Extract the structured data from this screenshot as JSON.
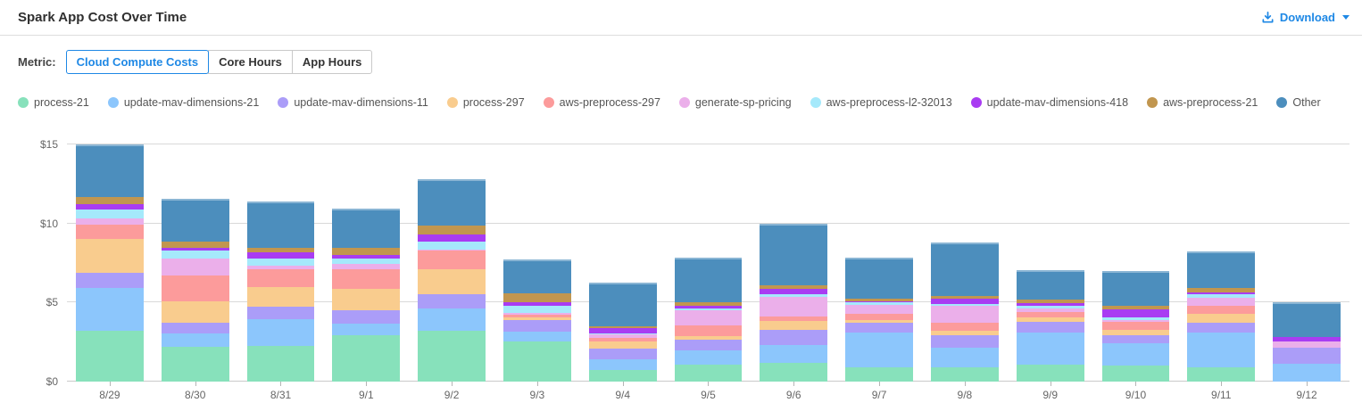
{
  "header": {
    "title": "Spark App Cost Over Time",
    "download": {
      "label": "Download",
      "accent_color": "#1E88E5"
    }
  },
  "metric_selector": {
    "label": "Metric:",
    "options": [
      {
        "label": "Cloud Compute Costs",
        "selected": true
      },
      {
        "label": "Core Hours",
        "selected": false
      },
      {
        "label": "App Hours",
        "selected": false
      }
    ]
  },
  "chart_data": {
    "type": "bar",
    "stacked": true,
    "title": "Spark App Cost Over Time",
    "xlabel": "",
    "ylabel": "",
    "ylim": [
      0,
      15
    ],
    "yticks": [
      {
        "label": "$0",
        "value": 0
      },
      {
        "label": "$5",
        "value": 5
      },
      {
        "label": "$10",
        "value": 10
      },
      {
        "label": "$15",
        "value": 15
      }
    ],
    "grid": true,
    "legend_position": "top",
    "categories": [
      "8/29",
      "8/30",
      "8/31",
      "9/1",
      "9/2",
      "9/3",
      "9/4",
      "9/5",
      "9/6",
      "9/7",
      "9/8",
      "9/9",
      "9/10",
      "9/11",
      "9/12"
    ],
    "series": [
      {
        "name": "process-21",
        "color": "#87E1BB",
        "values": [
          3.2,
          2.2,
          2.27,
          2.93,
          3.22,
          2.52,
          0.76,
          1.1,
          1.17,
          0.9,
          0.92,
          1.1,
          1.04,
          0.92,
          0.0
        ]
      },
      {
        "name": "update-mav-dimensions-21",
        "color": "#8CC6FC",
        "values": [
          2.7,
          0.85,
          1.66,
          0.76,
          1.42,
          0.62,
          0.66,
          0.87,
          1.13,
          2.23,
          1.21,
          2.0,
          1.36,
          2.16,
          1.12
        ]
      },
      {
        "name": "update-mav-dimensions-11",
        "color": "#AB9DF8",
        "values": [
          1.0,
          0.7,
          0.8,
          0.8,
          0.91,
          0.76,
          0.66,
          0.69,
          1.0,
          0.6,
          0.81,
          0.66,
          0.56,
          0.62,
          1.0
        ]
      },
      {
        "name": "process-297",
        "color": "#F9CC8E",
        "values": [
          2.15,
          1.35,
          1.23,
          1.39,
          1.55,
          0.17,
          0.44,
          0.24,
          0.51,
          0.17,
          0.28,
          0.29,
          0.29,
          0.57,
          0.0
        ]
      },
      {
        "name": "aws-preprocess-297",
        "color": "#FC9B9B",
        "values": [
          0.9,
          1.6,
          1.14,
          1.23,
          1.19,
          0.19,
          0.26,
          0.68,
          0.32,
          0.4,
          0.48,
          0.34,
          0.52,
          0.52,
          0.0
        ]
      },
      {
        "name": "generate-sp-pricing",
        "color": "#EBAFEA",
        "values": [
          0.35,
          1.1,
          0.21,
          0.34,
          0.05,
          0.11,
          0.21,
          0.91,
          1.25,
          0.55,
          1.12,
          0.22,
          0.15,
          0.51,
          0.42
        ]
      },
      {
        "name": "aws-preprocess-l2-32013",
        "color": "#A5E9FB",
        "values": [
          0.6,
          0.5,
          0.47,
          0.31,
          0.51,
          0.42,
          0.05,
          0.16,
          0.15,
          0.15,
          0.1,
          0.19,
          0.15,
          0.25,
          0.0
        ]
      },
      {
        "name": "update-mav-dimensions-418",
        "color": "#A93CF2",
        "values": [
          0.3,
          0.15,
          0.41,
          0.26,
          0.44,
          0.23,
          0.32,
          0.15,
          0.32,
          0.1,
          0.35,
          0.19,
          0.5,
          0.12,
          0.28
        ]
      },
      {
        "name": "aws-preprocess-21",
        "color": "#C1964F",
        "values": [
          0.45,
          0.4,
          0.28,
          0.42,
          0.57,
          0.57,
          0.13,
          0.25,
          0.25,
          0.15,
          0.15,
          0.19,
          0.2,
          0.23,
          0.0
        ]
      },
      {
        "name": "Other",
        "color": "#4C8EBD",
        "values": [
          3.35,
          2.7,
          2.94,
          2.5,
          2.93,
          2.14,
          2.76,
          2.8,
          3.88,
          2.6,
          3.4,
          1.9,
          2.2,
          2.35,
          2.2
        ]
      }
    ]
  }
}
